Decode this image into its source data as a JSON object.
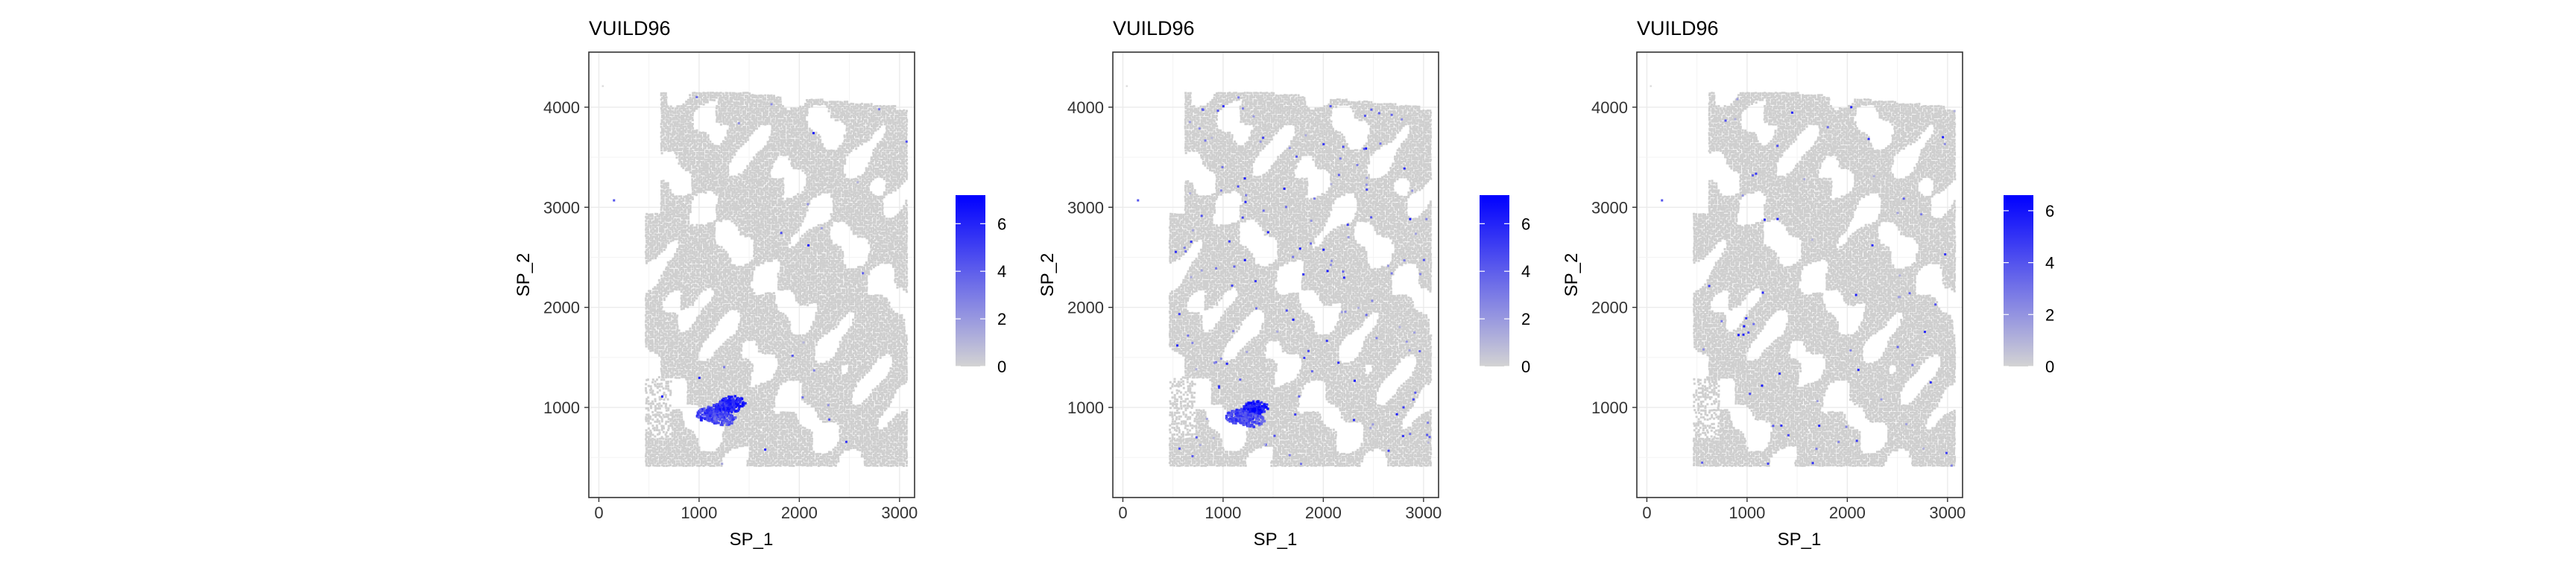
{
  "chart_data": [
    {
      "type": "scatter",
      "title": "VUILD96",
      "xlabel": "SP_1",
      "ylabel": "SP_2",
      "xlim": [
        -100,
        3150
      ],
      "ylim": [
        100,
        4550
      ],
      "xticks": [
        0,
        1000,
        2000,
        3000
      ],
      "yticks": [
        1000,
        2000,
        3000,
        4000
      ],
      "grid": true,
      "legend": {
        "placement": "right",
        "ticks": [
          0,
          2,
          4,
          6
        ],
        "range": [
          0,
          7.2
        ],
        "low_color": "#d3d3d3",
        "high_color": "#0000ff"
      },
      "hotspots": [
        {
          "x": 1180,
          "y": 980,
          "value": 5.5
        },
        {
          "x": 1280,
          "y": 1020,
          "value": 6.2
        },
        {
          "x": 1080,
          "y": 940,
          "value": 5.0
        },
        {
          "x": 1230,
          "y": 900,
          "value": 4.5
        },
        {
          "x": 1330,
          "y": 1060,
          "value": 5.8
        }
      ],
      "scattered_density": 0.01
    },
    {
      "type": "scatter",
      "title": "VUILD96",
      "xlabel": "SP_1",
      "ylabel": "SP_2",
      "xlim": [
        -100,
        3150
      ],
      "ylim": [
        100,
        4550
      ],
      "xticks": [
        0,
        1000,
        2000,
        3000
      ],
      "yticks": [
        1000,
        2000,
        3000,
        4000
      ],
      "grid": true,
      "legend": {
        "placement": "right",
        "ticks": [
          0,
          2,
          4,
          6
        ],
        "range": [
          0,
          7.2
        ],
        "low_color": "#d3d3d3",
        "high_color": "#0000ff"
      },
      "hotspots": [
        {
          "x": 1230,
          "y": 960,
          "value": 5.5
        },
        {
          "x": 1320,
          "y": 1010,
          "value": 6.5
        },
        {
          "x": 1130,
          "y": 920,
          "value": 4.8
        },
        {
          "x": 1280,
          "y": 880,
          "value": 4.5
        }
      ],
      "scattered_density": 0.05
    },
    {
      "type": "scatter",
      "title": "VUILD96",
      "xlabel": "SP_1",
      "ylabel": "SP_2",
      "xlim": [
        -100,
        3150
      ],
      "ylim": [
        100,
        4550
      ],
      "xticks": [
        0,
        1000,
        2000,
        3000
      ],
      "yticks": [
        1000,
        2000,
        3000,
        4000
      ],
      "grid": true,
      "legend": {
        "placement": "right",
        "ticks": [
          0,
          2,
          4,
          6
        ],
        "range": [
          0,
          6.6
        ],
        "low_color": "#d3d3d3",
        "high_color": "#0000ff"
      },
      "hotspots": [],
      "scattered_density": 0.025
    }
  ]
}
